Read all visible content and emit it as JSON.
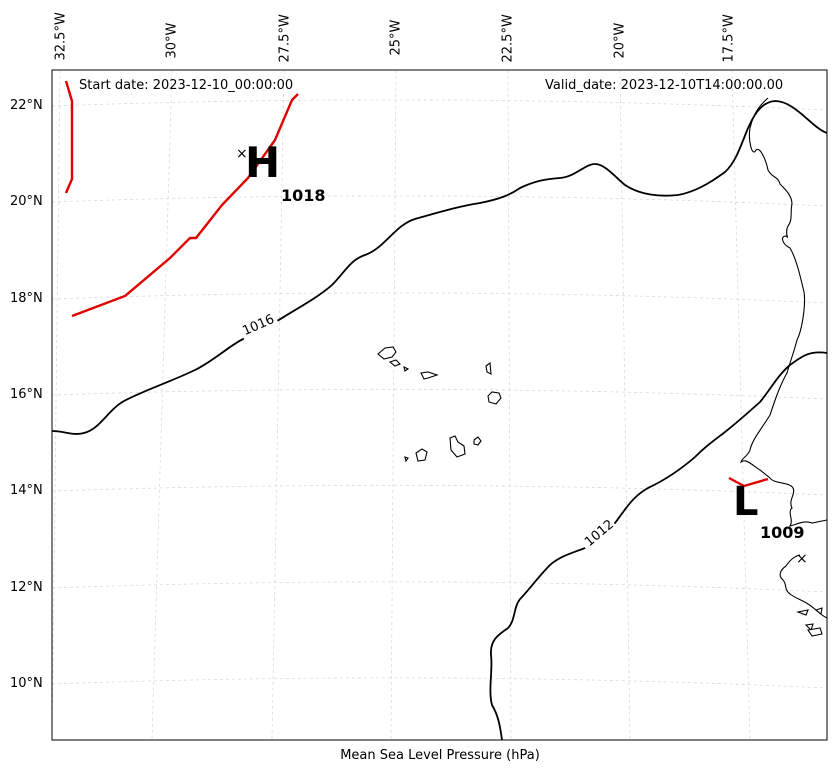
{
  "map": {
    "start_date": "Start date: 2023-12-10_00:00:00",
    "valid_date": "Valid_date: 2023-12-10T14:00:00.00",
    "xlabel": "Mean Sea Level Pressure (hPa)",
    "lon_labels": [
      "32.5°W",
      "30°W",
      "27.5°W",
      "25°W",
      "22.5°W",
      "20°W",
      "17.5°W"
    ],
    "lat_labels": [
      "22°N",
      "20°N",
      "18°N",
      "16°N",
      "14°N",
      "12°N",
      "10°N"
    ],
    "isobar_labels": [
      "1016",
      "1012"
    ],
    "high": {
      "symbol": "H",
      "value": "1018"
    },
    "low": {
      "symbol": "L",
      "value": "1009"
    },
    "colors": {
      "isobar": "#000000",
      "front": "#e00000",
      "grid": "#d9d9d9"
    }
  }
}
